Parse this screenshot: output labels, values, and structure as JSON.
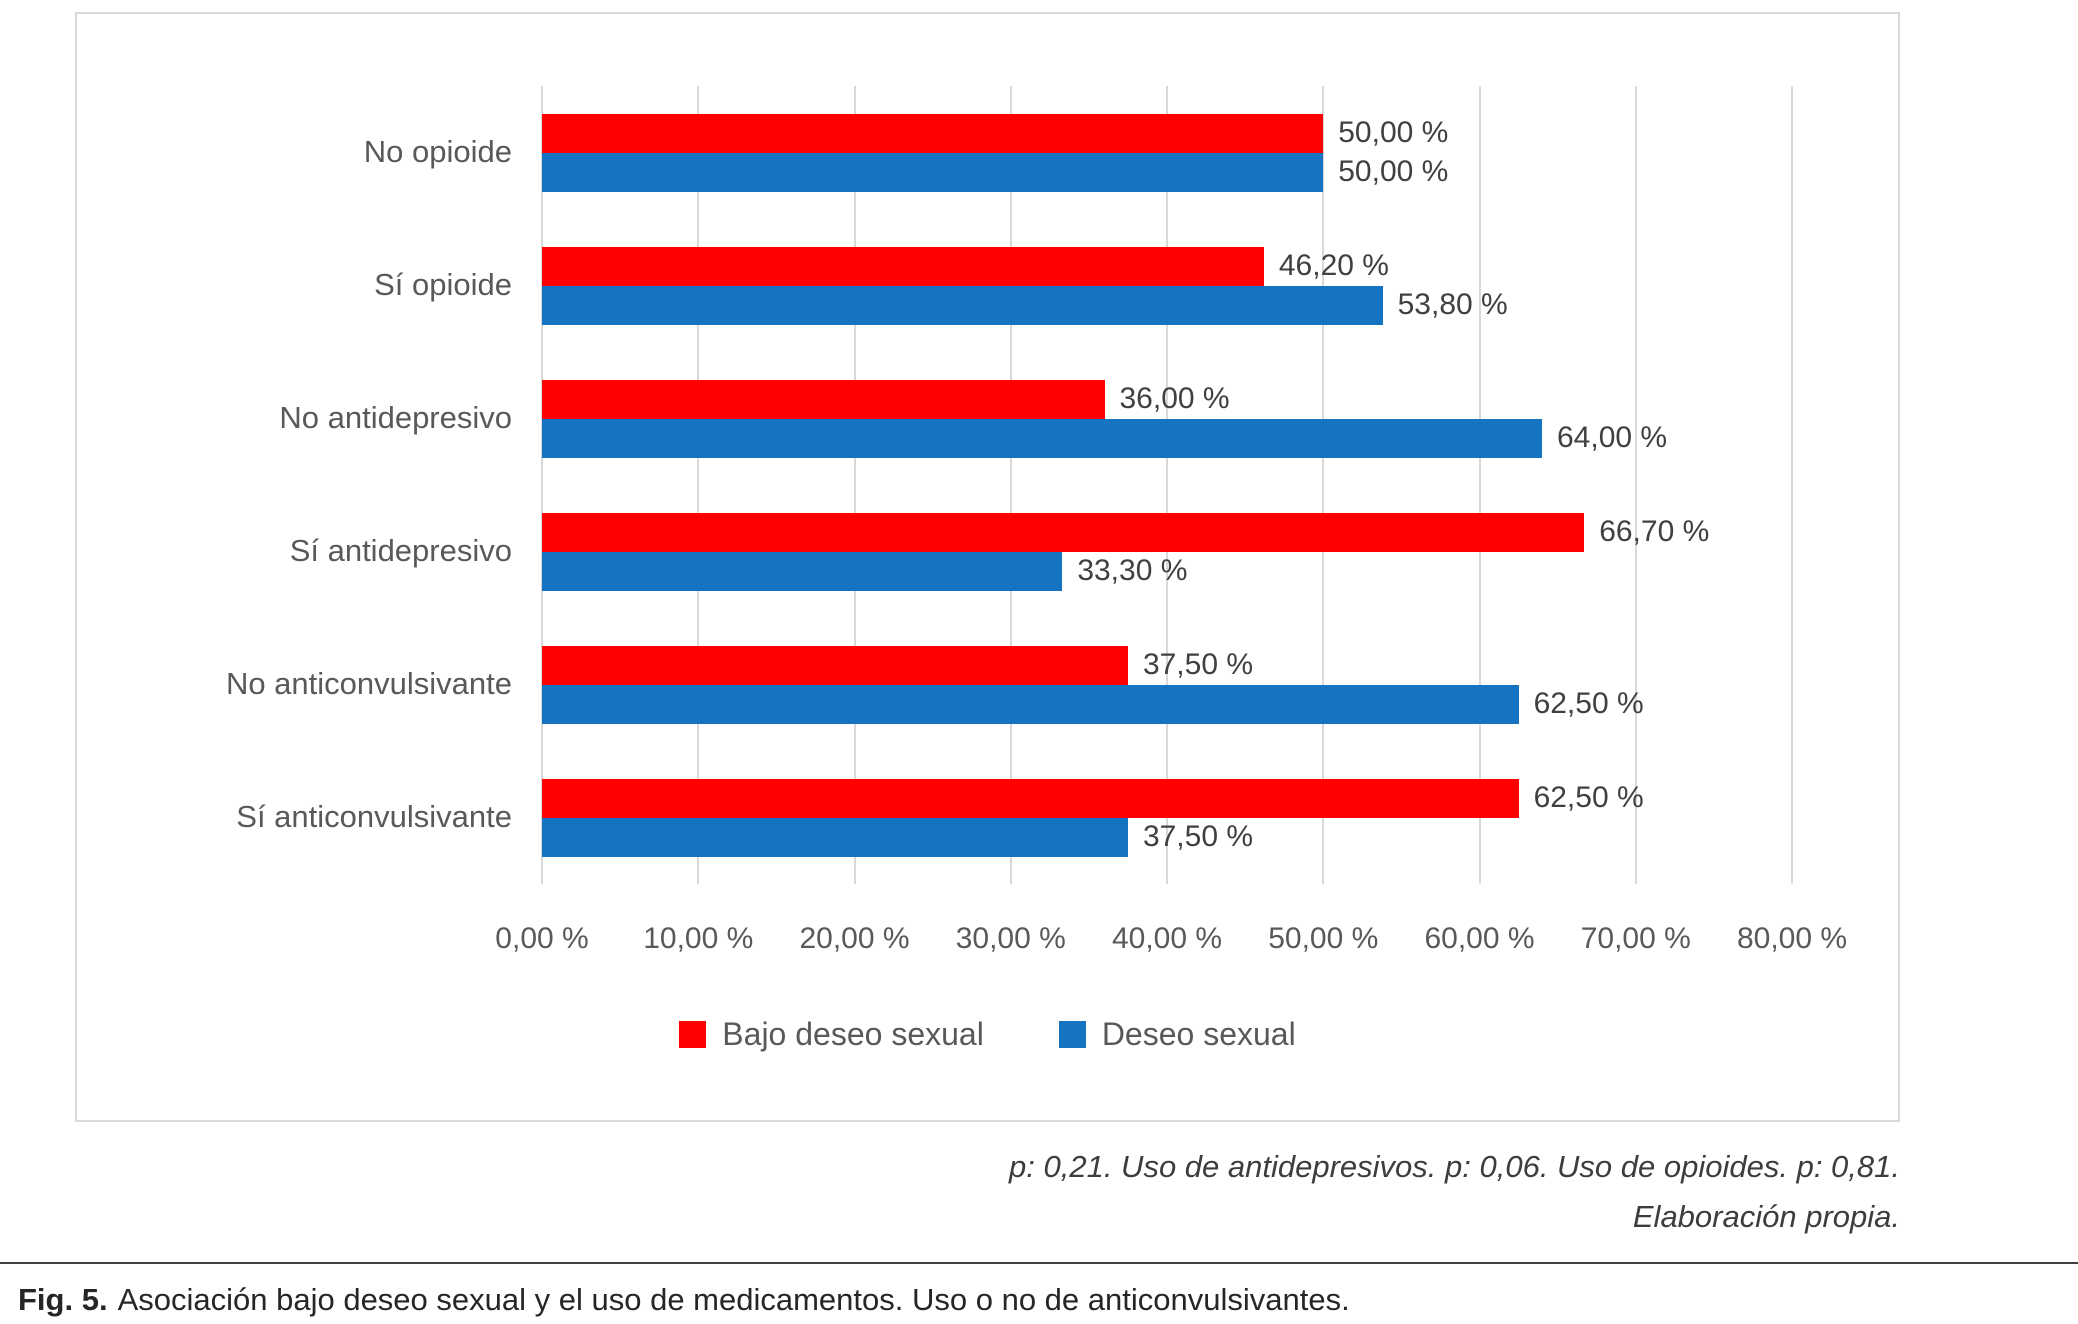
{
  "chart_data": {
    "type": "bar",
    "orientation": "horizontal",
    "title": "",
    "categories": [
      "No opioide",
      "Sí opioide",
      "No antidepresivo",
      "Sí antidepresivo",
      "No anticonvulsivante",
      "Sí anticonvulsivante"
    ],
    "series": [
      {
        "name": "Bajo deseo sexual",
        "color": "#fe0000",
        "values": [
          50.0,
          46.2,
          36.0,
          66.7,
          37.5,
          62.5
        ],
        "labels": [
          "50,00 %",
          "46,20 %",
          "36,00 %",
          "66,70 %",
          "37,50 %",
          "62,50 %"
        ]
      },
      {
        "name": "Deseo sexual",
        "color": "#1673c2",
        "values": [
          50.0,
          53.8,
          64.0,
          33.3,
          62.5,
          37.5
        ],
        "labels": [
          "50,00 %",
          "53,80 %",
          "64,00 %",
          "33,30 %",
          "62,50 %",
          "37,50 %"
        ]
      }
    ],
    "x_axis": {
      "min": 0,
      "max": 80,
      "tick_step": 10,
      "tick_labels": [
        "0,00 %",
        "10,00 %",
        "20,00 %",
        "30,00 %",
        "40,00 %",
        "50,00 %",
        "60,00 %",
        "70,00 %",
        "80,00 %"
      ]
    },
    "grid": true,
    "legend_position": "bottom",
    "legend": [
      "Bajo deseo sexual",
      "Deseo sexual"
    ]
  },
  "notes": {
    "line1": "p: 0,21. Uso de antidepresivos. p: 0,06. Uso de opioides. p: 0,81.",
    "line2": "Elaboración propia."
  },
  "caption": {
    "label": "Fig. 5.",
    "text": "Asociación bajo deseo sexual y el uso de medicamentos. Uso o no de anticonvulsivantes."
  }
}
